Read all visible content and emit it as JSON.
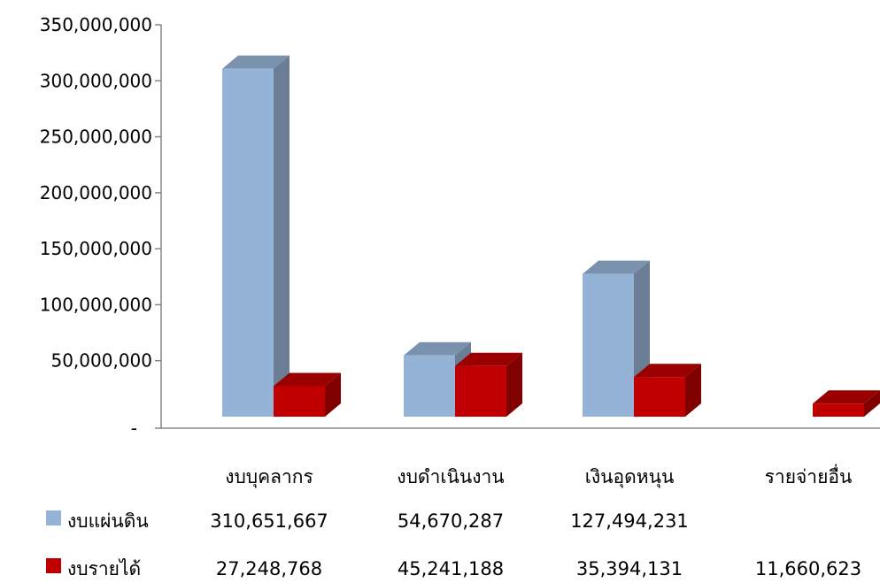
{
  "chart_data": {
    "type": "bar",
    "categories": [
      "งบบุคลากร",
      "งบดำเนินงาน",
      "เงินอุดหนุน",
      "รายจ่ายอื่น"
    ],
    "series": [
      {
        "name": "งบแผ่นดิน",
        "values": [
          310651667,
          54670287,
          127494231,
          null
        ],
        "display": [
          "310,651,667",
          "54,670,287",
          "127,494,231",
          ""
        ],
        "color": "#95B3D7",
        "side_color": "#6B7E96",
        "top_color": "#7A92AE"
      },
      {
        "name": "งบรายได้",
        "values": [
          27248768,
          45241188,
          35394131,
          11660623
        ],
        "display": [
          "27,248,768",
          "45,241,188",
          "35,394,131",
          "11,660,623"
        ],
        "color": "#C00000",
        "side_color": "#800000",
        "top_color": "#9A0000"
      }
    ],
    "y_ticks": [
      {
        "value": 0,
        "label": "-"
      },
      {
        "value": 50000000,
        "label": "50,000,000"
      },
      {
        "value": 100000000,
        "label": "100,000,000"
      },
      {
        "value": 150000000,
        "label": "150,000,000"
      },
      {
        "value": 200000000,
        "label": "200,000,000"
      },
      {
        "value": 250000000,
        "label": "250,000,000"
      },
      {
        "value": 300000000,
        "label": "300,000,000"
      },
      {
        "value": 350000000,
        "label": "350,000,000"
      }
    ],
    "ylim": [
      0,
      350000000
    ],
    "grid": false,
    "legend": "data-table"
  }
}
